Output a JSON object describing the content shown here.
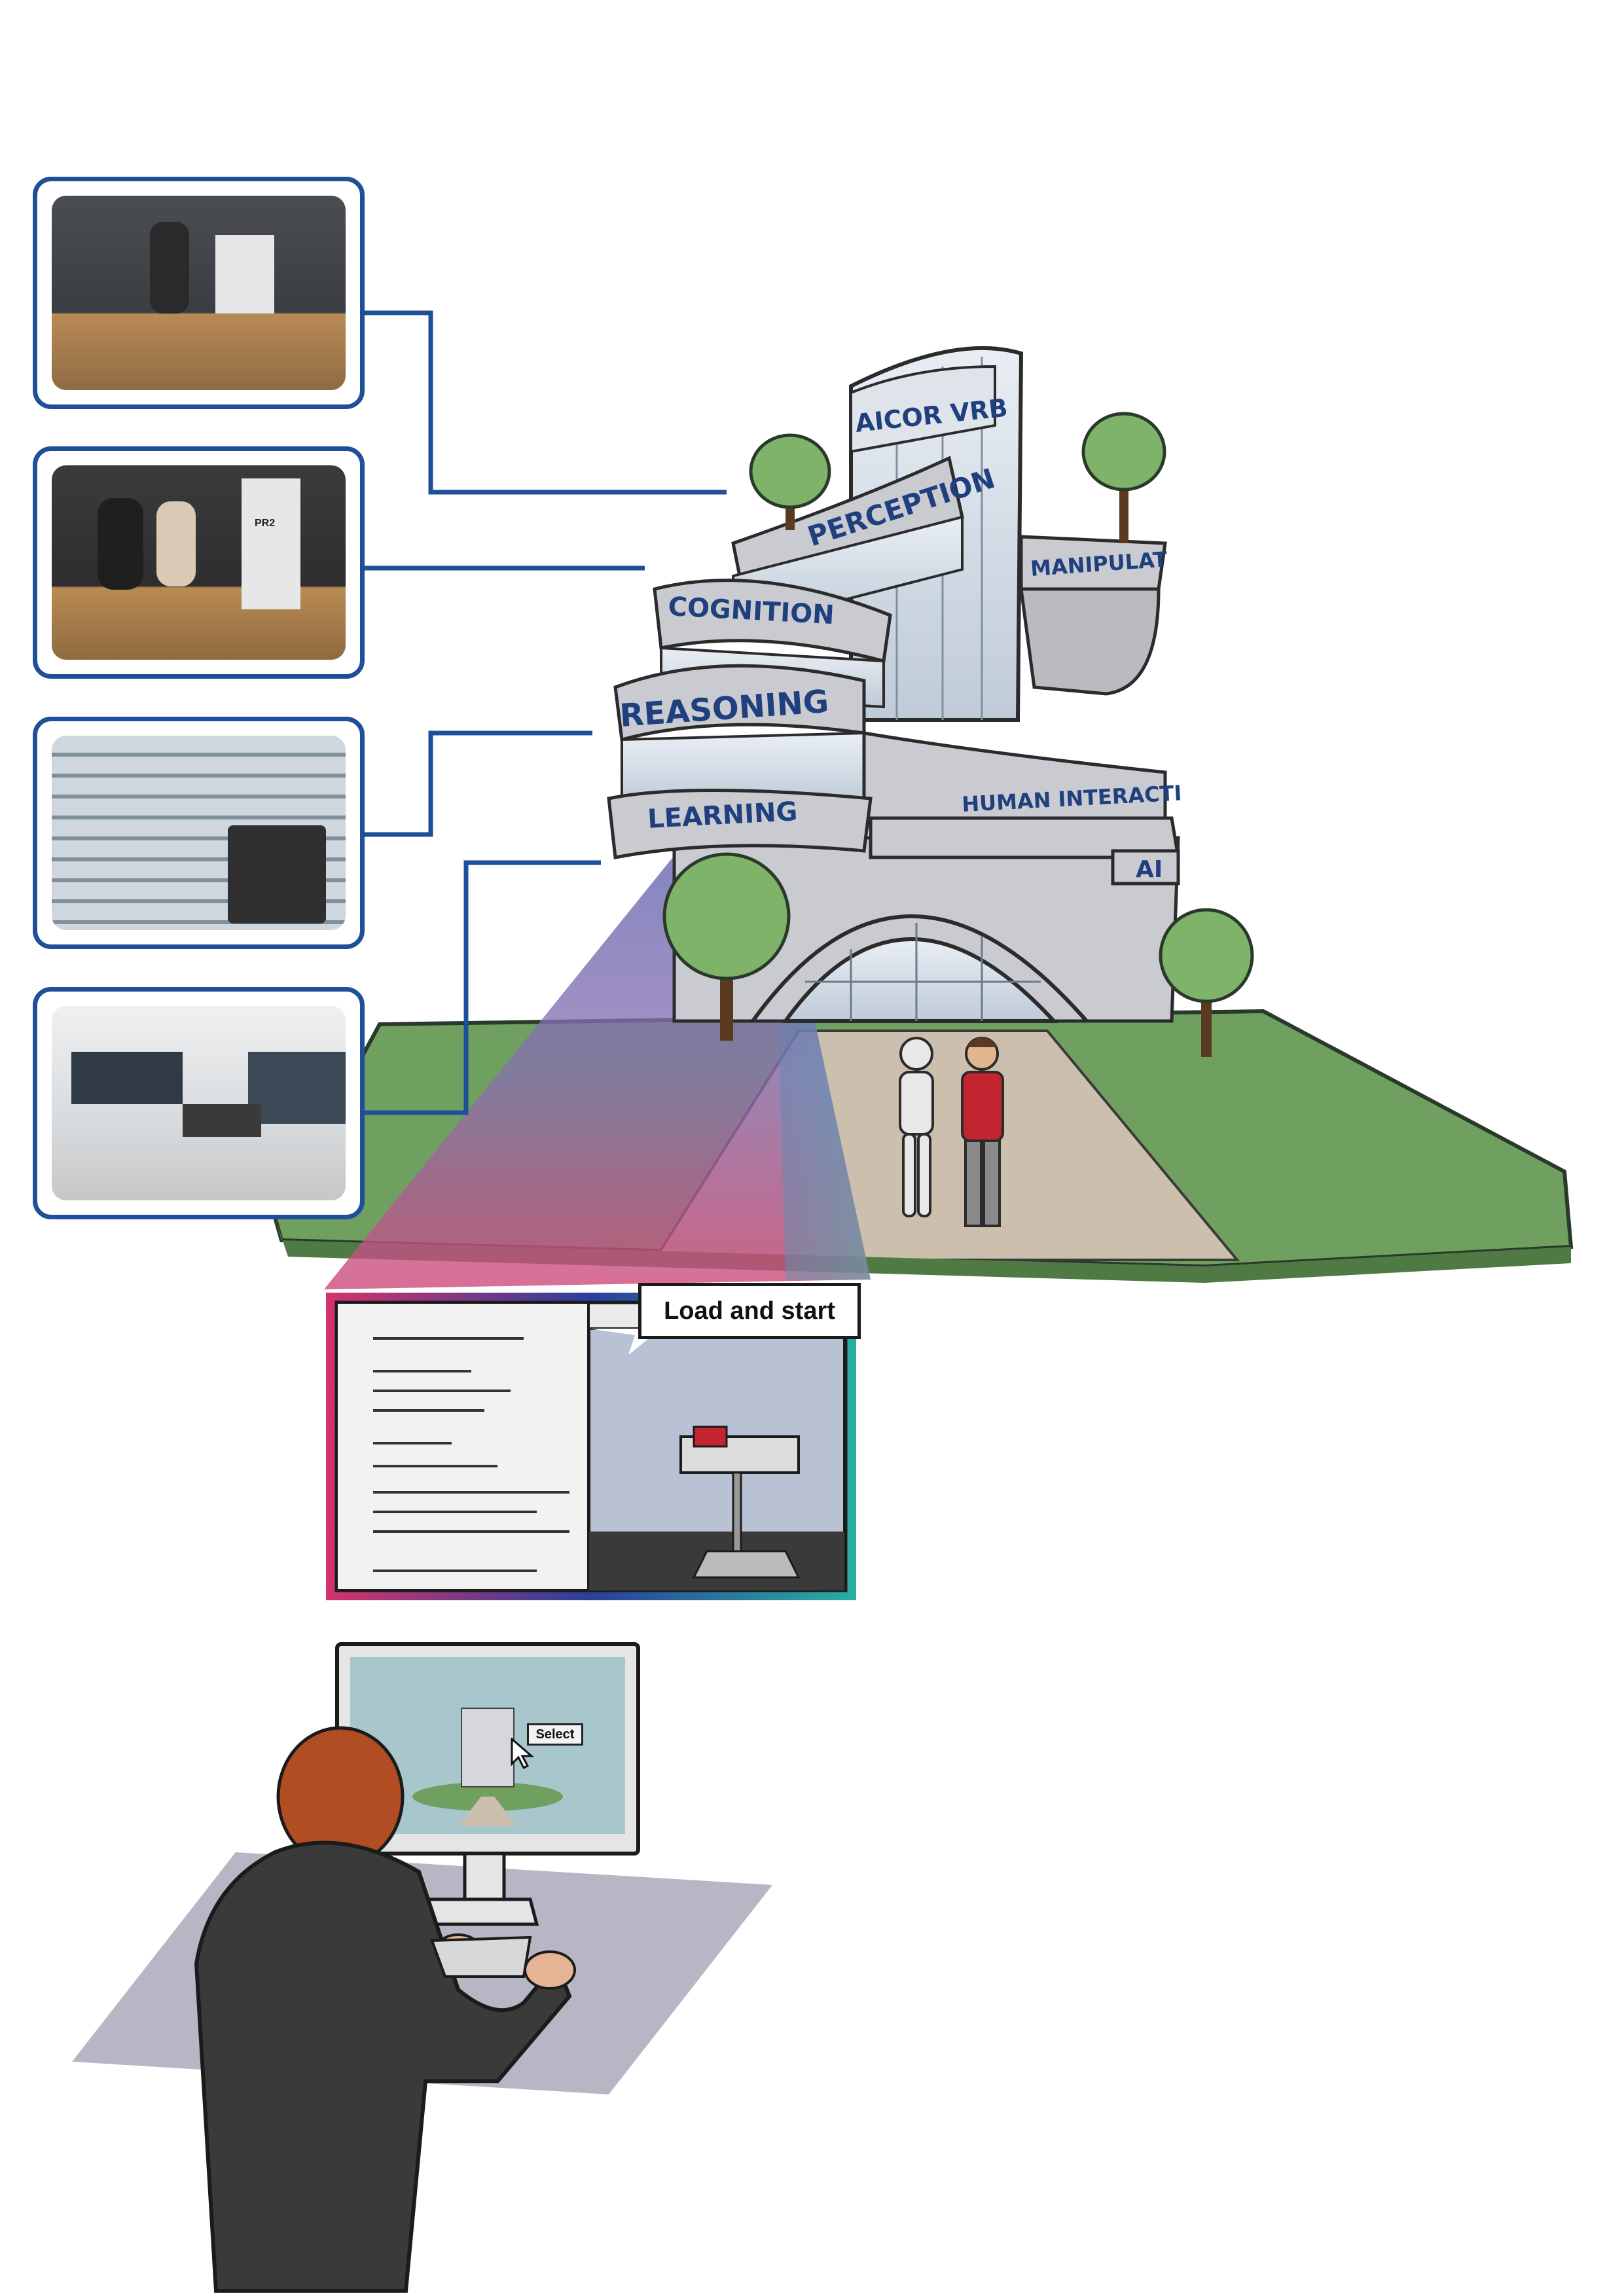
{
  "building": {
    "logo": "AICOR VRB",
    "floors": [
      "PERCEPTION",
      "MANIPULAT",
      "COGNITION",
      "REASONING",
      "LEARNING",
      "HUMAN INTERACTI",
      "AI"
    ]
  },
  "photos": [
    {
      "name": "kitchen-robot-photo",
      "robot_label": ""
    },
    {
      "name": "students-pr2-photo",
      "robot_label": "PR2"
    },
    {
      "name": "supermarket-robot-photo",
      "robot_label": ""
    },
    {
      "name": "lab-workstations-photo",
      "robot_label": ""
    }
  ],
  "simulation": {
    "callout_label": "Load and start"
  },
  "monitor": {
    "select_label": "Select"
  },
  "colors": {
    "frame_blue": "#1f4f99",
    "grass_green": "#6fa060",
    "building_gray": "#c9cbd0",
    "label_blue": "#1f3f7f"
  }
}
